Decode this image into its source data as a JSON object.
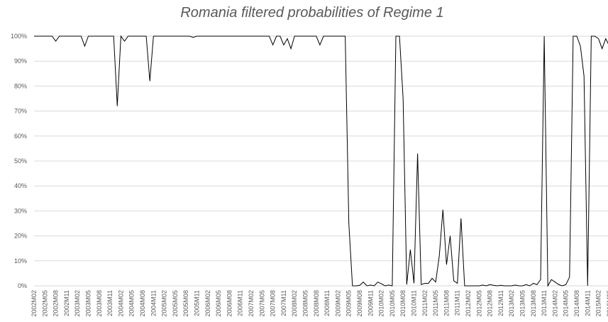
{
  "chart_data": {
    "type": "line",
    "title": "Romania filtered probabilities of Regime 1",
    "categories": [
      "2002M02",
      null,
      null,
      "2002M05",
      null,
      null,
      "2002M08",
      null,
      null,
      "2002M11",
      null,
      null,
      "2003M02",
      null,
      null,
      "2003M05",
      null,
      null,
      "2003M08",
      null,
      null,
      "2003M11",
      null,
      null,
      "2004M02",
      null,
      null,
      "2004M05",
      null,
      null,
      "2004M08",
      null,
      null,
      "2004M11",
      null,
      null,
      "2005M02",
      null,
      null,
      "2005M05",
      null,
      null,
      "2005M08",
      null,
      null,
      "2005M11",
      null,
      null,
      "2006M02",
      null,
      null,
      "2006M05",
      null,
      null,
      "2006M08",
      null,
      null,
      "2006M11",
      null,
      null,
      "2007M02",
      null,
      null,
      "2007M05",
      null,
      null,
      "2007M08",
      null,
      null,
      "2007M11",
      null,
      null,
      "2008M02",
      null,
      null,
      "2008M05",
      null,
      null,
      "2008M08",
      null,
      null,
      "2008M11",
      null,
      null,
      "2009M02",
      null,
      null,
      "2009M05",
      null,
      null,
      "2009M08",
      null,
      null,
      "2009M11",
      null,
      null,
      "2010M02",
      null,
      null,
      "2010M05",
      null,
      null,
      "2010M08",
      null,
      null,
      "2010M11",
      null,
      null,
      "2011M02",
      null,
      null,
      "2011M05",
      null,
      null,
      "2011M08",
      null,
      null,
      "2011M11",
      null,
      null,
      "2012M02",
      null,
      null,
      "2012M05",
      null,
      null,
      "2012M08",
      null,
      null,
      "2012M11",
      null,
      null,
      "2013M02",
      null,
      null,
      "2013M05",
      null,
      null,
      "2013M08",
      null,
      null,
      "2013M11",
      null,
      null,
      "2014M02",
      null,
      null,
      "2014M05",
      null,
      null,
      "2014M08",
      null,
      null,
      "2014M11",
      null,
      null,
      "2015M02",
      null,
      null,
      "2015M05"
    ],
    "values": [
      100,
      100,
      100,
      100,
      100,
      100,
      98,
      100,
      100,
      100,
      100,
      100,
      100,
      100,
      96,
      100,
      100,
      100,
      100,
      100,
      100,
      100,
      100,
      72,
      100,
      98,
      100,
      100,
      100,
      100,
      100,
      100,
      82,
      100,
      100,
      100,
      100,
      100,
      100,
      100,
      100,
      100,
      100,
      100,
      99.5,
      100,
      100,
      100,
      100,
      100,
      100,
      100,
      100,
      100,
      100,
      100,
      100,
      100,
      100,
      100,
      100,
      100,
      100,
      100,
      100,
      100,
      96.5,
      100,
      100,
      96.5,
      99,
      95,
      100,
      100,
      100,
      100,
      100,
      100,
      100,
      96.5,
      100,
      100,
      100,
      100,
      100,
      100,
      100,
      25,
      0,
      0,
      0.2,
      1.5,
      0,
      0.3,
      0,
      1.5,
      0.8,
      0,
      0.3,
      0,
      100,
      100,
      75,
      0.5,
      14.5,
      1,
      53,
      0.5,
      1,
      1,
      3,
      1.5,
      12,
      30.5,
      8.5,
      20,
      2,
      1,
      27,
      0,
      0,
      0,
      0,
      0,
      0.3,
      0,
      0.5,
      0.2,
      0,
      0.2,
      0,
      0,
      0,
      0.3,
      0,
      0,
      0.5,
      0,
      1,
      0.5,
      2.5,
      100,
      0,
      2.5,
      1.5,
      0.5,
      0,
      0.5,
      3.5,
      100,
      100,
      96,
      84,
      0,
      100,
      100,
      99,
      95,
      99,
      96
    ],
    "color": "#000000",
    "ylim": [
      0,
      100
    ],
    "yticks": [
      {
        "value": 0,
        "label": "0%"
      },
      {
        "value": 10,
        "label": "10%"
      },
      {
        "value": 20,
        "label": "20%"
      },
      {
        "value": 30,
        "label": "30%"
      },
      {
        "value": 40,
        "label": "40%"
      },
      {
        "value": 50,
        "label": "50%"
      },
      {
        "value": 60,
        "label": "60%"
      },
      {
        "value": 70,
        "label": "70%"
      },
      {
        "value": 80,
        "label": "80%"
      },
      {
        "value": 90,
        "label": "90%"
      },
      {
        "value": 100,
        "label": "100%"
      }
    ],
    "grid": true
  }
}
